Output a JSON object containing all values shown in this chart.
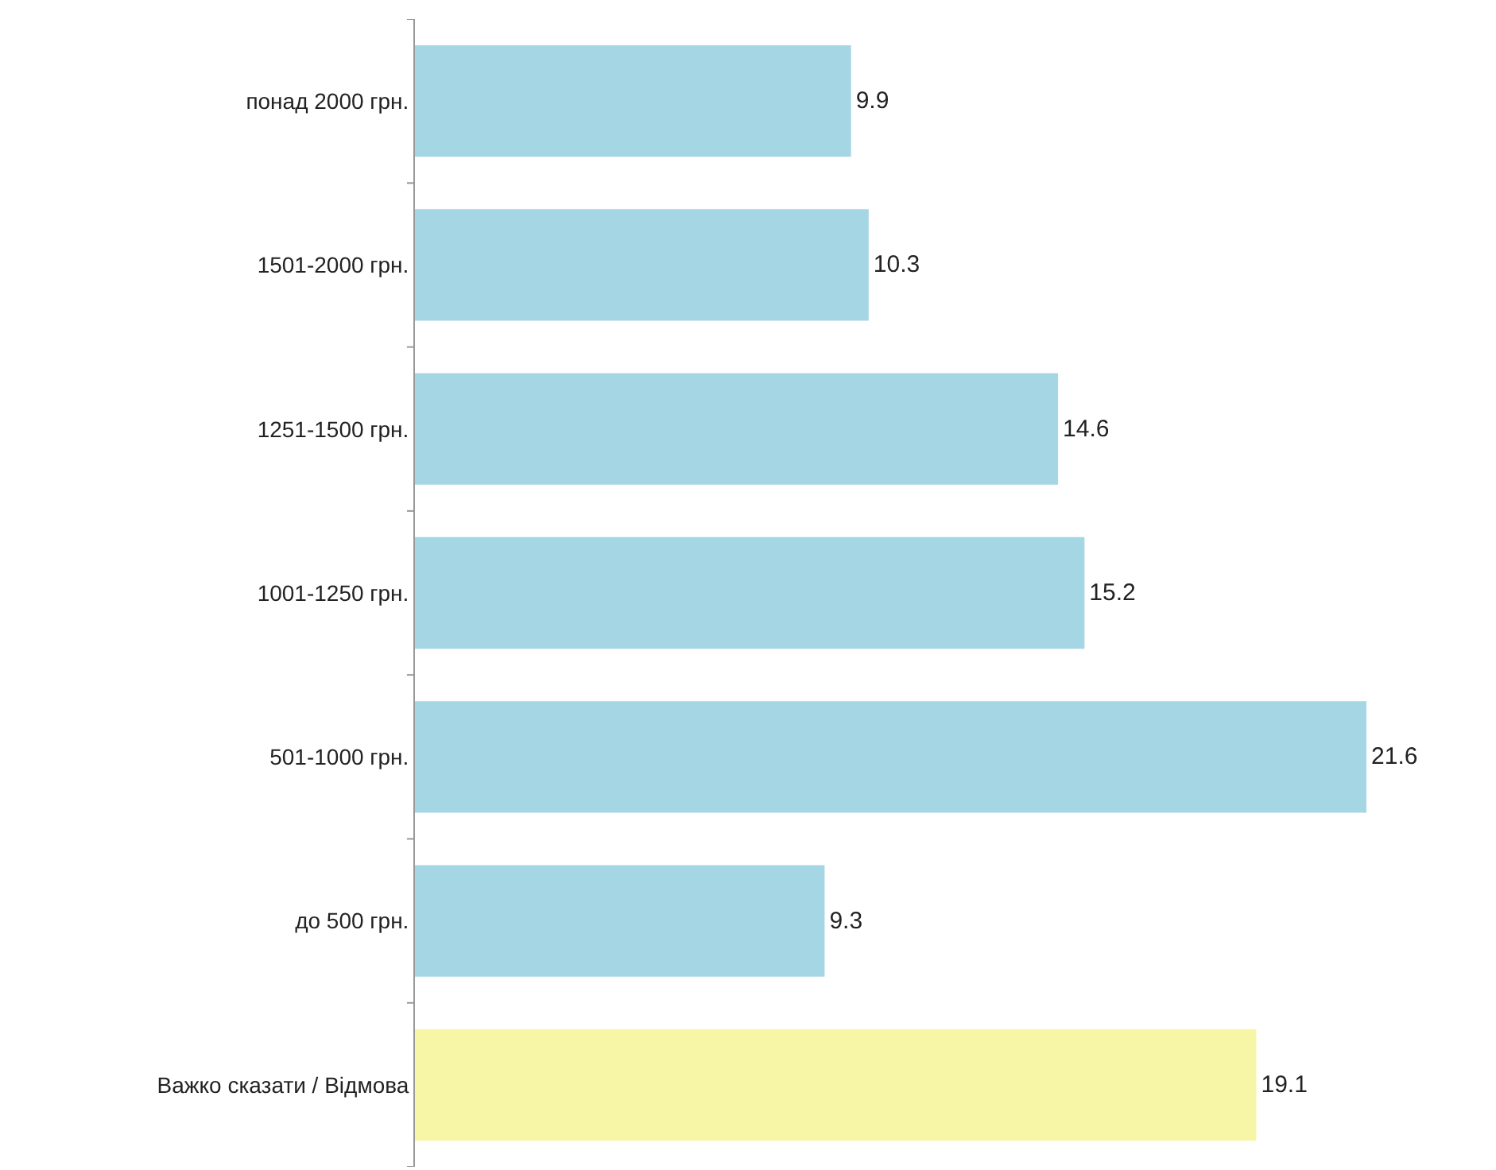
{
  "chart_data": {
    "type": "bar",
    "orientation": "horizontal",
    "categories": [
      "понад 2000 грн.",
      "1501-2000 грн.",
      "1251-1500 грн.",
      "1001-1250 грн.",
      "501-1000 грн.",
      "до 500 грн.",
      "Важко сказати / Відмова"
    ],
    "values": [
      9.9,
      10.3,
      14.6,
      15.2,
      21.6,
      9.3,
      19.1
    ],
    "colors": [
      "#a5d6e4",
      "#a5d6e4",
      "#a5d6e4",
      "#a5d6e4",
      "#a5d6e4",
      "#a5d6e4",
      "#f6f6a6"
    ],
    "data_labels": true,
    "tick_labels": "y"
  }
}
